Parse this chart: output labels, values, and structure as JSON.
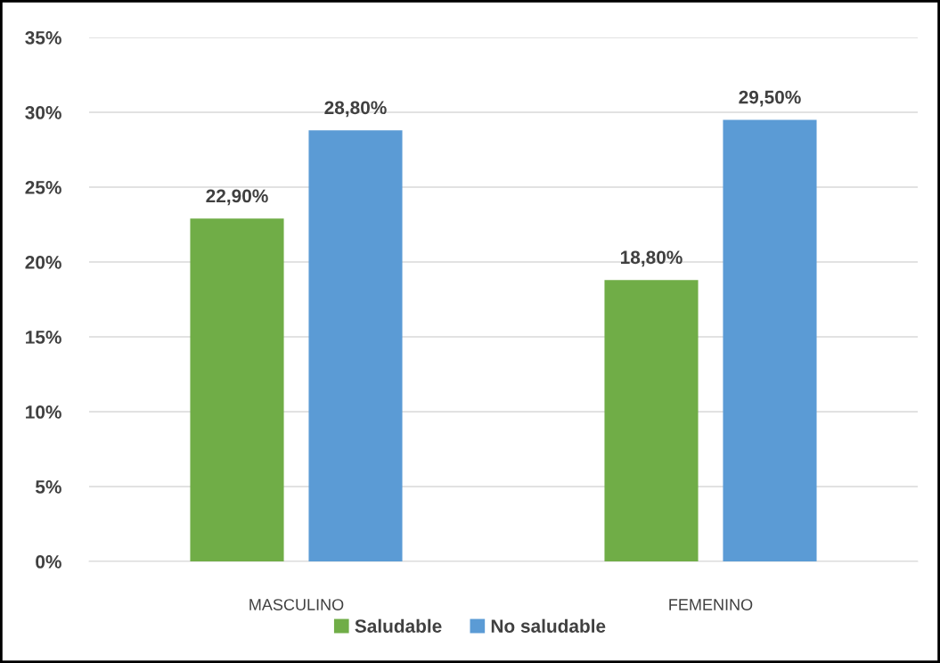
{
  "chart_data": {
    "type": "bar",
    "categories": [
      "MASCULINO",
      "FEMENINO"
    ],
    "series": [
      {
        "name": "Saludable",
        "color": "#70ad47",
        "values": [
          22.9,
          18.8
        ],
        "value_labels": [
          "22,90%",
          "18,80%"
        ]
      },
      {
        "name": "No saludable",
        "color": "#5b9bd5",
        "values": [
          28.8,
          29.5
        ],
        "value_labels": [
          "28,80%",
          "29,50%"
        ]
      }
    ],
    "ylim": [
      0,
      35
    ],
    "yticks": [
      {
        "value": 0,
        "label": "0%"
      },
      {
        "value": 5,
        "label": "5%"
      },
      {
        "value": 10,
        "label": "10%"
      },
      {
        "value": 15,
        "label": "15%"
      },
      {
        "value": 20,
        "label": "20%"
      },
      {
        "value": 25,
        "label": "25%"
      },
      {
        "value": 30,
        "label": "30%"
      },
      {
        "value": 35,
        "label": "35%"
      }
    ],
    "grid": "y",
    "legend": "bottom"
  }
}
